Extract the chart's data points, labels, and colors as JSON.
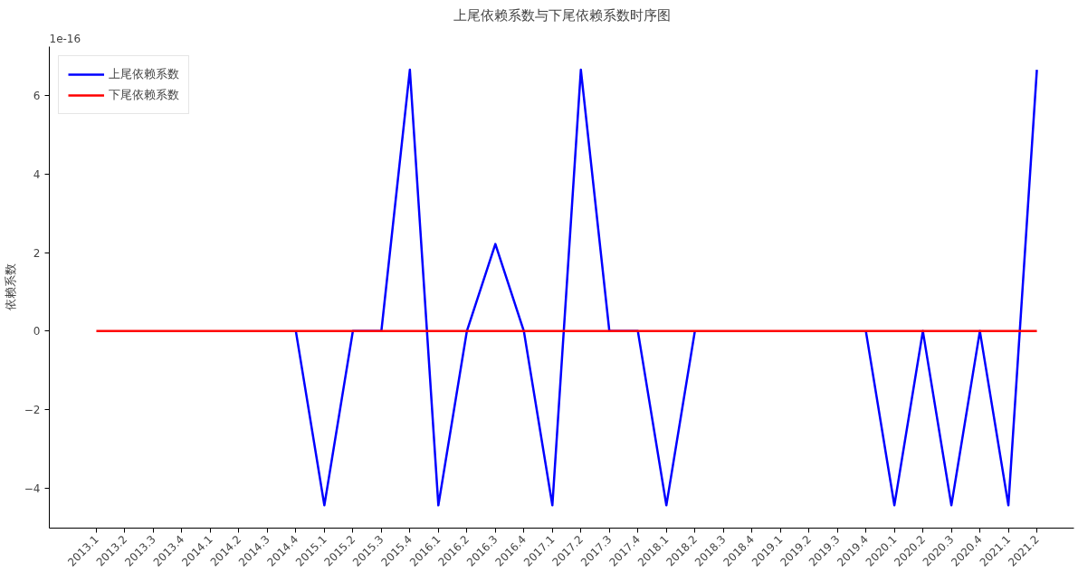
{
  "chart_data": {
    "type": "line",
    "title": "上尾依赖系数与下尾依赖系数时序图",
    "ylabel": "依赖系数",
    "annotations": [
      "1e-16"
    ],
    "categories": [
      "2013.1",
      "2013.2",
      "2013.3",
      "2013.4",
      "2014.1",
      "2014.2",
      "2014.3",
      "2014.4",
      "2015.1",
      "2015.2",
      "2015.3",
      "2015.4",
      "2016.1",
      "2016.2",
      "2016.3",
      "2016.4",
      "2017.1",
      "2017.2",
      "2017.3",
      "2017.4",
      "2018.1",
      "2018.2",
      "2018.3",
      "2018.4",
      "2019.1",
      "2019.2",
      "2019.3",
      "2019.4",
      "2020.1",
      "2020.2",
      "2020.3",
      "2020.4",
      "2021.1",
      "2021.2"
    ],
    "series": [
      {
        "name": "上尾依赖系数",
        "color": "#0000ff",
        "values": [
          null,
          null,
          null,
          null,
          null,
          null,
          null,
          0,
          -4.44,
          0,
          0,
          6.66,
          -4.44,
          0,
          2.22,
          0,
          -4.44,
          6.66,
          0,
          0,
          -4.44,
          0,
          null,
          null,
          null,
          null,
          null,
          0,
          -4.44,
          0,
          -4.44,
          0,
          -4.44,
          6.66
        ]
      },
      {
        "name": "下尾依赖系数",
        "color": "#ff0000",
        "values": [
          0,
          0,
          0,
          0,
          0,
          0,
          0,
          0,
          0,
          0,
          0,
          0,
          0,
          0,
          0,
          0,
          0,
          0,
          0,
          0,
          0,
          0,
          0,
          0,
          0,
          0,
          0,
          0,
          0,
          0,
          0,
          0,
          0,
          0
        ]
      }
    ],
    "ylim": [
      -5.02,
      7.25
    ],
    "yticks": [
      -4,
      -2,
      0,
      2,
      4,
      6
    ],
    "legend": "top left",
    "grid": false,
    "marker": "none",
    "line_style": "solid"
  }
}
